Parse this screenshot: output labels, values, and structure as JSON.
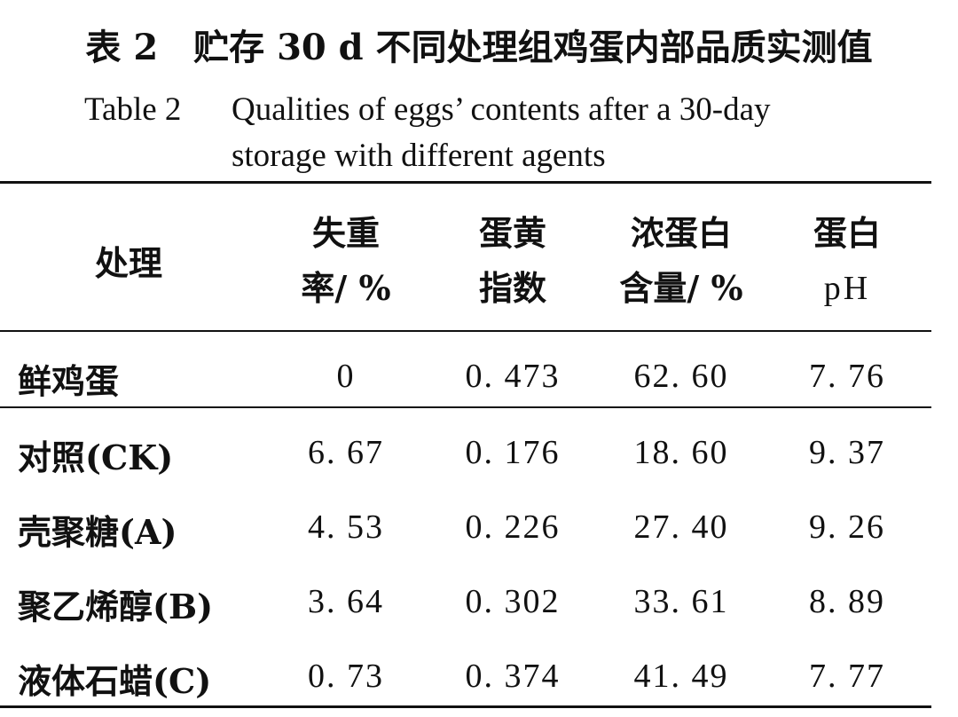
{
  "title": {
    "cn": "表 2　贮存 30 d 不同处理组鸡蛋内部品质实测值",
    "en_label": "Table 2",
    "en_line1": "Qualities of eggs’ contents after a 30-day",
    "en_line2": "storage with different agents"
  },
  "table": {
    "headers": [
      {
        "line1": "处理",
        "line2": ""
      },
      {
        "line1": "失重",
        "line2": "率/ %"
      },
      {
        "line1": "蛋黄",
        "line2": "指数"
      },
      {
        "line1": "浓蛋白",
        "line2": "含量/ %"
      },
      {
        "line1": "蛋白",
        "line2": "pH"
      }
    ],
    "rows": [
      {
        "label": "鲜鸡蛋",
        "cells": [
          "0",
          "0. 473",
          "62. 60",
          "7. 76"
        ]
      },
      {
        "label": "对照(CK)",
        "cells": [
          "6. 67",
          "0. 176",
          "18. 60",
          "9. 37"
        ]
      },
      {
        "label": "壳聚糖(A)",
        "cells": [
          "4. 53",
          "0. 226",
          "27. 40",
          "9. 26"
        ]
      },
      {
        "label": "聚乙烯醇(B)",
        "cells": [
          "3. 64",
          "0. 302",
          "33. 61",
          "8. 89"
        ]
      },
      {
        "label": "液体石蜡(C)",
        "cells": [
          "0. 73",
          "0. 374",
          "41. 49",
          "7. 77"
        ]
      }
    ]
  }
}
